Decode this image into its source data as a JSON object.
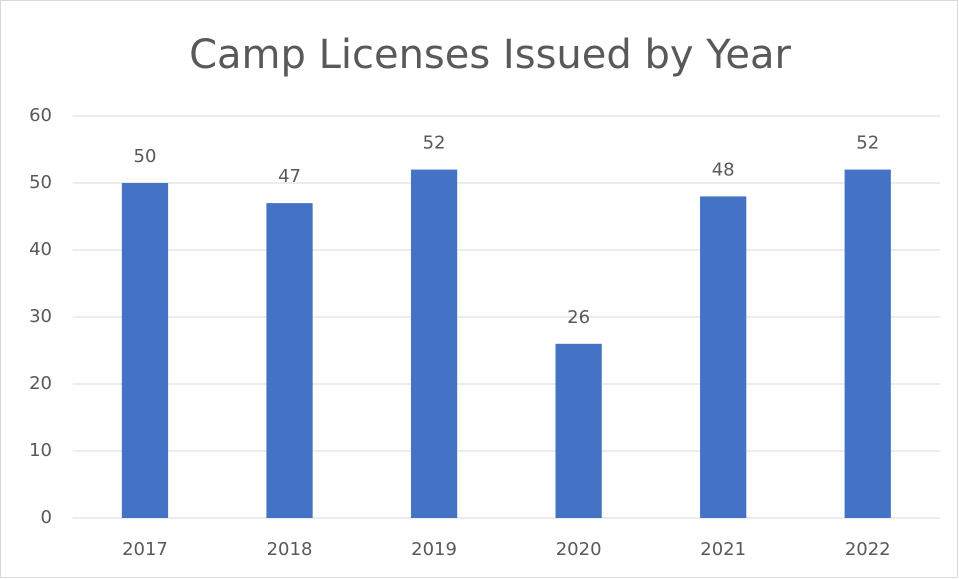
{
  "chart_data": {
    "type": "bar",
    "title": "Camp Licenses Issued by Year",
    "categories": [
      "2017",
      "2018",
      "2019",
      "2020",
      "2021",
      "2022"
    ],
    "values": [
      50,
      47,
      52,
      26,
      48,
      52
    ],
    "color": "#4472c4",
    "ylim": [
      0,
      60
    ],
    "yticks": [
      0,
      10,
      20,
      30,
      40,
      50,
      60
    ],
    "grid": true,
    "data_labels": true
  }
}
